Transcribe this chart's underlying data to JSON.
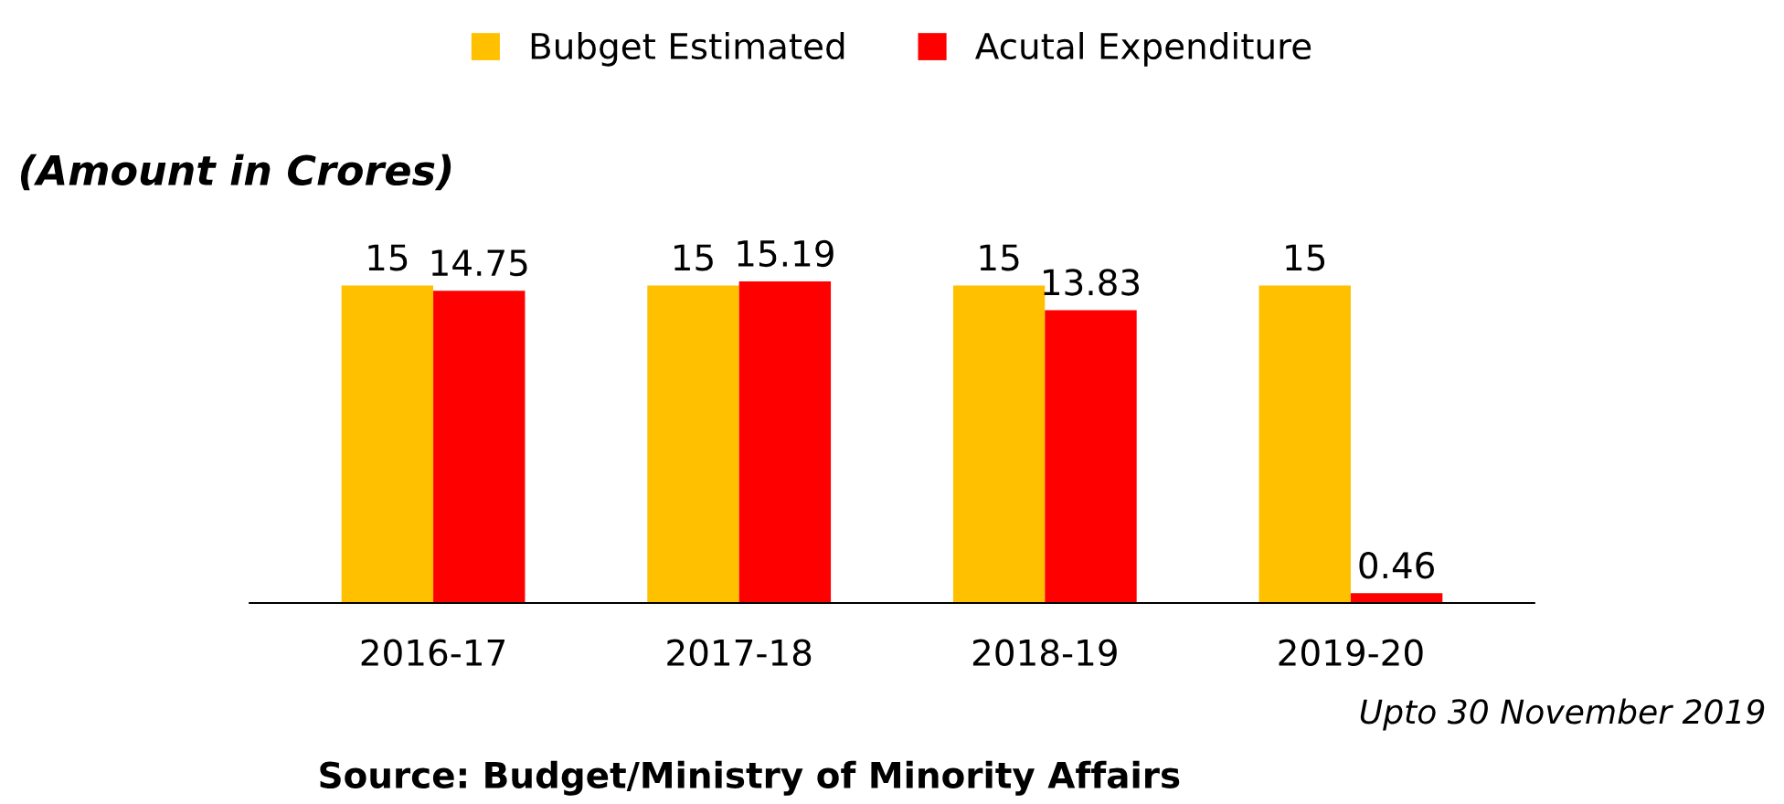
{
  "chart_data": {
    "type": "bar",
    "subtitle": "(Amount in Crores)",
    "categories": [
      "2016-17",
      "2017-18",
      "2018-19",
      "2019-20"
    ],
    "series": [
      {
        "name": "Bubget Estimated",
        "color": "#ffc000",
        "values": [
          15,
          15,
          15,
          15
        ]
      },
      {
        "name": "Acutal Expenditure",
        "color": "#ff0000",
        "values": [
          14.75,
          15.19,
          13.83,
          0.46
        ]
      }
    ],
    "data_labels": true,
    "legend": "top",
    "grid": false,
    "annotations": [
      "Upto 30 November 2019",
      "Source: Budget/Ministry of Minority Affairs"
    ]
  }
}
